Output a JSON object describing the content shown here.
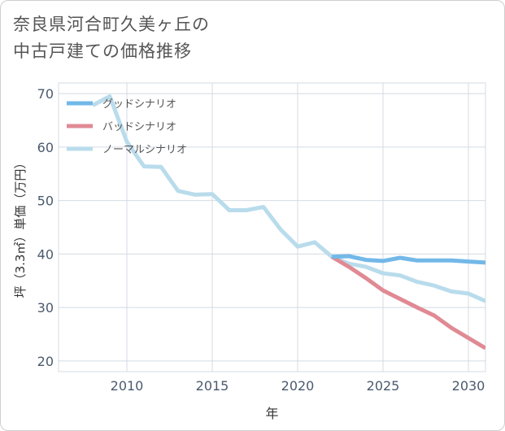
{
  "title_lines": [
    "奈良県河合町久美ヶ丘の",
    "中古戸建ての価格推移"
  ],
  "chart_data": {
    "type": "line",
    "ylabel": "坪（3.3㎡）単価（万円）",
    "xlabel": "年",
    "xlim": [
      2006,
      2031
    ],
    "ylim": [
      18,
      72
    ],
    "xticks": [
      2010,
      2015,
      2020,
      2025,
      2030
    ],
    "yticks": [
      20,
      30,
      40,
      50,
      60,
      70
    ],
    "grid": true,
    "legend_position": "top-left",
    "series": [
      {
        "name": "グッドシナリオ",
        "color": "#72b8e8",
        "x": [
          2022,
          2023,
          2024,
          2025,
          2026,
          2027,
          2028,
          2029,
          2030,
          2031
        ],
        "values": [
          39.5,
          39.6,
          38.9,
          38.7,
          39.3,
          38.8,
          38.8,
          38.8,
          38.6,
          38.4
        ]
      },
      {
        "name": "バッドシナリオ",
        "color": "#e08a94",
        "x": [
          2022,
          2023,
          2024,
          2025,
          2026,
          2027,
          2028,
          2029,
          2030,
          2031
        ],
        "values": [
          39.5,
          37.6,
          35.5,
          33.2,
          31.6,
          30.0,
          28.5,
          26.2,
          24.3,
          22.4
        ]
      },
      {
        "name": "ノーマルシナリオ",
        "color": "#b9dcec",
        "x": [
          2008,
          2009,
          2010,
          2011,
          2012,
          2013,
          2014,
          2015,
          2016,
          2017,
          2018,
          2019,
          2020,
          2021,
          2022,
          2023,
          2024,
          2025,
          2026,
          2027,
          2028,
          2029,
          2030,
          2031
        ],
        "values": [
          67.8,
          69.5,
          61.0,
          56.4,
          56.3,
          51.8,
          51.1,
          51.2,
          48.2,
          48.2,
          48.8,
          44.6,
          41.4,
          42.2,
          39.5,
          38.2,
          37.6,
          36.4,
          36.0,
          34.8,
          34.1,
          33.0,
          32.6,
          31.2
        ]
      }
    ]
  }
}
